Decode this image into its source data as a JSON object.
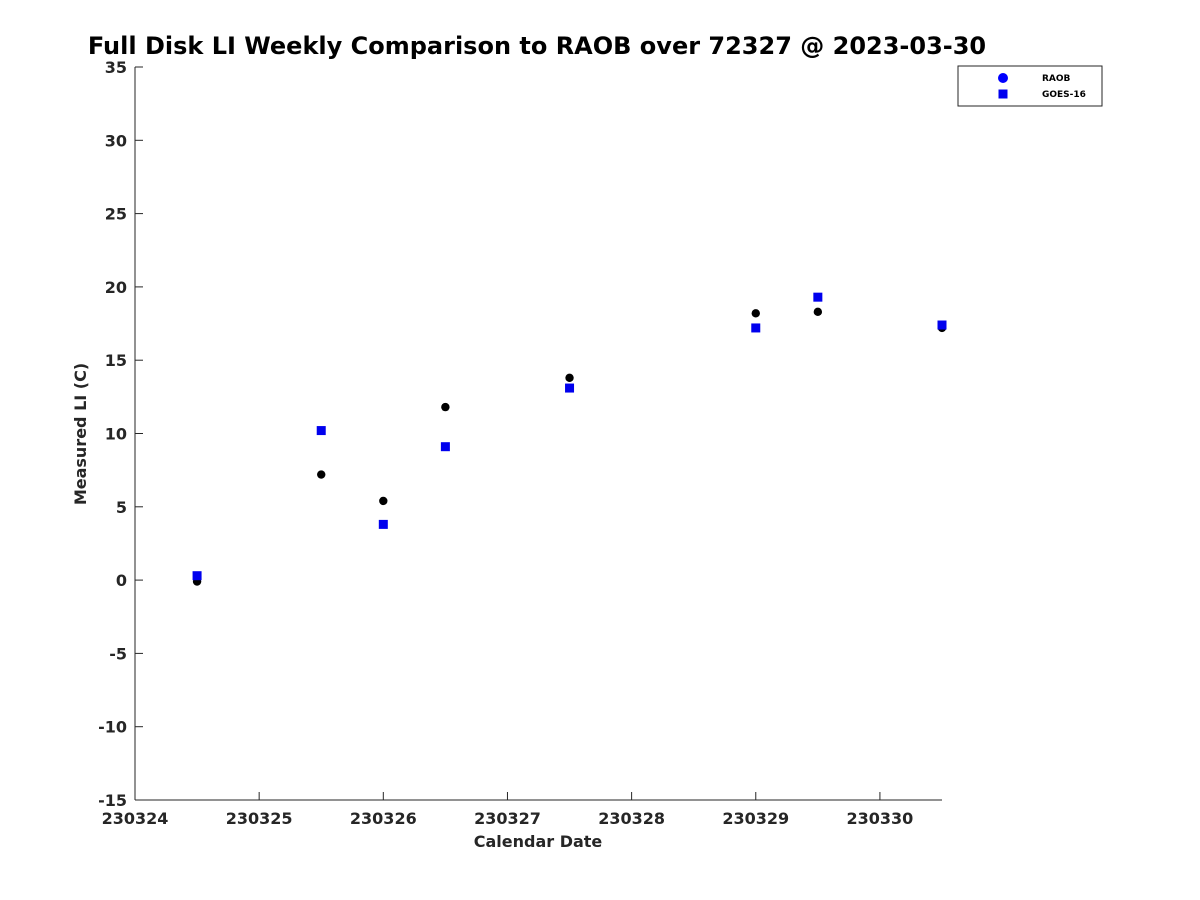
{
  "chart_data": {
    "type": "scatter",
    "title": "Full Disk LI Weekly Comparison to RAOB over 72327 @ 2023-03-30",
    "xlabel": "Calendar Date",
    "ylabel": "Measured LI (C)",
    "xlim": [
      0,
      6.5
    ],
    "ylim": [
      -15,
      35
    ],
    "x_ticks": [
      {
        "value": 0,
        "label": "230324"
      },
      {
        "value": 1,
        "label": "230325"
      },
      {
        "value": 2,
        "label": "230326"
      },
      {
        "value": 3,
        "label": "230327"
      },
      {
        "value": 4,
        "label": "230328"
      },
      {
        "value": 5,
        "label": "230329"
      },
      {
        "value": 6,
        "label": "230330"
      }
    ],
    "y_ticks": [
      {
        "value": 35,
        "label": "35"
      },
      {
        "value": 30,
        "label": "30"
      },
      {
        "value": 25,
        "label": "25"
      },
      {
        "value": 20,
        "label": "20"
      },
      {
        "value": 15,
        "label": "15"
      },
      {
        "value": 10,
        "label": "10"
      },
      {
        "value": 5,
        "label": "5"
      },
      {
        "value": 0,
        "label": "0"
      },
      {
        "value": -5,
        "label": "-5"
      },
      {
        "value": -10,
        "label": "-10"
      },
      {
        "value": -15,
        "label": "-15"
      }
    ],
    "grid": false,
    "legend_position": "top-right",
    "series": [
      {
        "name": "RAOB",
        "marker": "circle",
        "color": "#000000",
        "legend_color": "#0000ff",
        "x": [
          0.5,
          1.5,
          2.0,
          2.5,
          3.5,
          5.0,
          5.5,
          6.5
        ],
        "y": [
          -0.1,
          7.2,
          5.4,
          11.8,
          13.8,
          18.2,
          18.3,
          17.2
        ]
      },
      {
        "name": "GOES-16",
        "marker": "square",
        "color": "#0000ee",
        "legend_color": "#0000ee",
        "x": [
          0.5,
          1.5,
          2.0,
          2.5,
          3.5,
          5.0,
          5.5,
          6.5
        ],
        "y": [
          0.3,
          10.2,
          3.8,
          9.1,
          13.1,
          17.2,
          19.3,
          17.4
        ]
      }
    ]
  }
}
